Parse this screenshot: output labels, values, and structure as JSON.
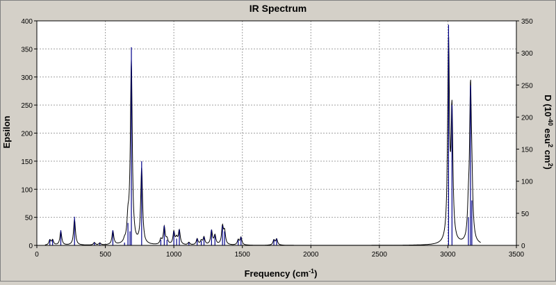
{
  "chart_data": {
    "type": "line",
    "title": "IR Spectrum",
    "xlabel": "Frequency (cm",
    "xlabel_sup": "-1",
    "xlabel_end": ")",
    "ylabel_left": "Epsilon",
    "ylabel_right_parts": [
      "D (10",
      "-40",
      " esu",
      "2",
      " cm",
      "2",
      ")"
    ],
    "xlim": [
      0,
      3500
    ],
    "ylim_left": [
      0,
      400
    ],
    "ylim_right": [
      0,
      350
    ],
    "x_ticks": [
      0,
      500,
      1000,
      1500,
      2000,
      2500,
      3000,
      3500
    ],
    "y_ticks_left": [
      0,
      50,
      100,
      150,
      200,
      250,
      300,
      350,
      400
    ],
    "y_ticks_right": [
      0,
      50,
      100,
      150,
      200,
      250,
      300,
      350
    ],
    "grid": true,
    "colors": {
      "spectrum": "#000000",
      "sticks": "#00008b",
      "grid": "#a0a0a0",
      "frame_bg": "#d4d0c8",
      "plot_bg": "#ffffff"
    },
    "peak_halfwidth": 8,
    "series": [
      {
        "x": [
          95,
          115,
          175,
          275,
          420,
          460,
          555,
          640,
          665,
          680,
          690,
          765,
          905,
          930,
          950,
          1000,
          1020,
          1040,
          1110,
          1170,
          1200,
          1220,
          1275,
          1300,
          1355,
          1370,
          1470,
          1490,
          1730,
          1750,
          3005,
          3030,
          3150,
          3165,
          3175
        ],
        "values": [
          10,
          10,
          27,
          51,
          5,
          4,
          27,
          5,
          40,
          25,
          353,
          150,
          10,
          35,
          10,
          25,
          12,
          28,
          5,
          12,
          8,
          15,
          28,
          18,
          35,
          25,
          10,
          15,
          10,
          12,
          393,
          250,
          50,
          285,
          80
        ]
      }
    ]
  }
}
